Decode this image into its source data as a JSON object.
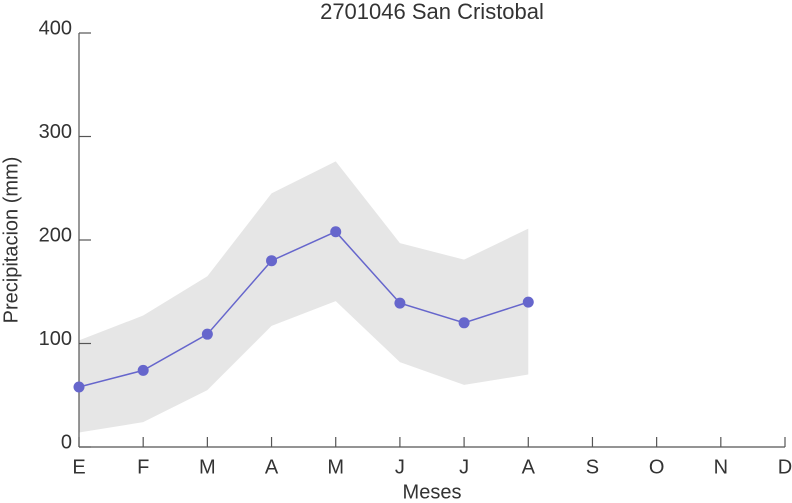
{
  "chart_data": {
    "type": "line",
    "title": "2701046 San Cristobal",
    "xlabel": "Meses",
    "ylabel": "Precipitacion (mm)",
    "categories": [
      "E",
      "F",
      "M",
      "A",
      "M",
      "J",
      "J",
      "A",
      "S",
      "O",
      "N",
      "D"
    ],
    "series": [
      {
        "color": "#6666cc",
        "values": [
          58,
          74,
          109,
          180,
          208,
          139,
          120,
          140,
          null,
          null,
          null,
          null
        ]
      }
    ],
    "band": {
      "color": "#e6e6e6",
      "upper": [
        103,
        127,
        165,
        245,
        276,
        197,
        181,
        211,
        null,
        null,
        null,
        null
      ],
      "lower": [
        14,
        24,
        55,
        117,
        141,
        82,
        60,
        70,
        null,
        null,
        null,
        null
      ]
    },
    "ylim": [
      0,
      400
    ],
    "yticks": [
      0,
      100,
      200,
      300,
      400
    ]
  }
}
